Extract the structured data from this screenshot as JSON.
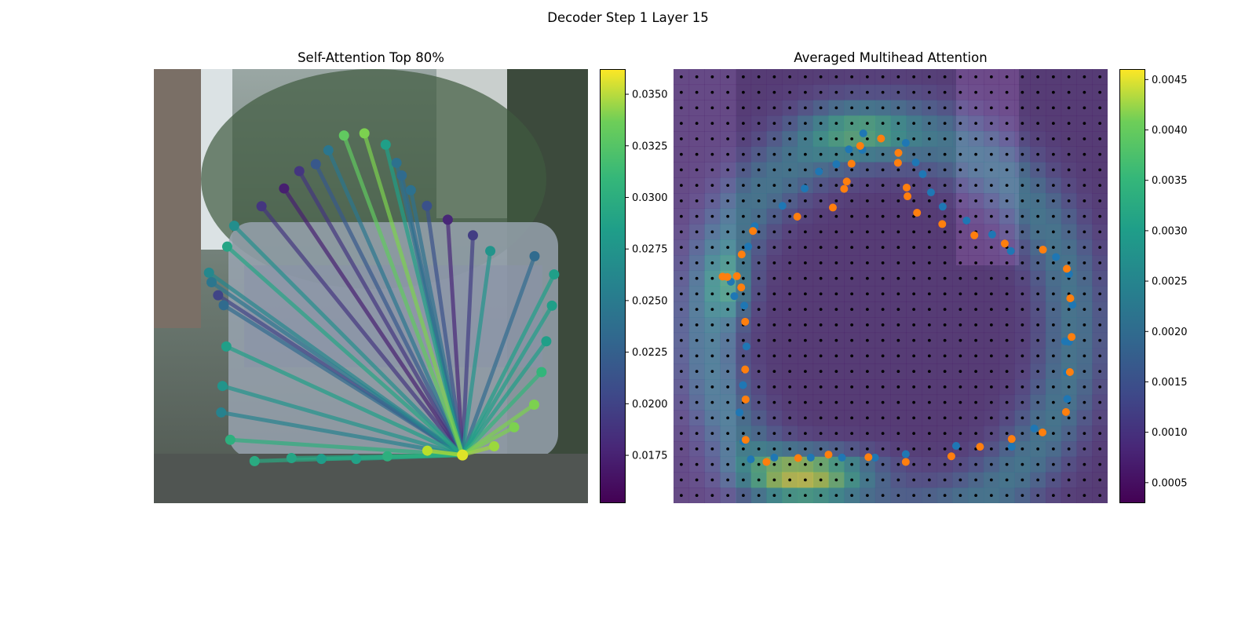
{
  "figure_title": "Decoder Step 1 Layer 15",
  "chart_data": [
    {
      "type": "scatter",
      "title": "Self-Attention Top 80%",
      "description_of_marks": "polygon keypoints colored by attention weight, lines from query point to attended keypoints",
      "colormap": "viridis",
      "colorbar": {
        "min": 0.0152,
        "max": 0.0362,
        "ticks": [
          0.0175,
          0.02,
          0.0225,
          0.025,
          0.0275,
          0.03,
          0.0325,
          0.035
        ],
        "tick_labels": [
          "0.0175",
          "0.0200",
          "0.0225",
          "0.0250",
          "0.0275",
          "0.0300",
          "0.0325",
          "0.0350"
        ]
      },
      "query_point": {
        "x": 0.711,
        "y": 0.889,
        "value": 0.0352
      },
      "points": [
        {
          "x": 0.232,
          "y": 0.903,
          "v": 0.028
        },
        {
          "x": 0.317,
          "y": 0.896,
          "v": 0.0275
        },
        {
          "x": 0.386,
          "y": 0.898,
          "v": 0.0268
        },
        {
          "x": 0.466,
          "y": 0.898,
          "v": 0.0272
        },
        {
          "x": 0.538,
          "y": 0.892,
          "v": 0.0285
        },
        {
          "x": 0.63,
          "y": 0.879,
          "v": 0.034
        },
        {
          "x": 0.784,
          "y": 0.869,
          "v": 0.033
        },
        {
          "x": 0.83,
          "y": 0.825,
          "v": 0.032
        },
        {
          "x": 0.876,
          "y": 0.773,
          "v": 0.032
        },
        {
          "x": 0.893,
          "y": 0.698,
          "v": 0.029
        },
        {
          "x": 0.904,
          "y": 0.627,
          "v": 0.027
        },
        {
          "x": 0.917,
          "y": 0.545,
          "v": 0.027
        },
        {
          "x": 0.922,
          "y": 0.473,
          "v": 0.027
        },
        {
          "x": 0.877,
          "y": 0.431,
          "v": 0.0225
        },
        {
          "x": 0.775,
          "y": 0.419,
          "v": 0.026
        },
        {
          "x": 0.735,
          "y": 0.383,
          "v": 0.019
        },
        {
          "x": 0.677,
          "y": 0.347,
          "v": 0.0175
        },
        {
          "x": 0.629,
          "y": 0.315,
          "v": 0.0205
        },
        {
          "x": 0.592,
          "y": 0.279,
          "v": 0.023
        },
        {
          "x": 0.571,
          "y": 0.245,
          "v": 0.0225
        },
        {
          "x": 0.559,
          "y": 0.216,
          "v": 0.023
        },
        {
          "x": 0.534,
          "y": 0.174,
          "v": 0.027
        },
        {
          "x": 0.485,
          "y": 0.148,
          "v": 0.032
        },
        {
          "x": 0.438,
          "y": 0.153,
          "v": 0.031
        },
        {
          "x": 0.402,
          "y": 0.187,
          "v": 0.0235
        },
        {
          "x": 0.373,
          "y": 0.219,
          "v": 0.021
        },
        {
          "x": 0.335,
          "y": 0.235,
          "v": 0.0185
        },
        {
          "x": 0.3,
          "y": 0.275,
          "v": 0.017
        },
        {
          "x": 0.248,
          "y": 0.316,
          "v": 0.0185
        },
        {
          "x": 0.185,
          "y": 0.361,
          "v": 0.0255
        },
        {
          "x": 0.169,
          "y": 0.409,
          "v": 0.0275
        },
        {
          "x": 0.127,
          "y": 0.469,
          "v": 0.025
        },
        {
          "x": 0.133,
          "y": 0.491,
          "v": 0.0235
        },
        {
          "x": 0.148,
          "y": 0.521,
          "v": 0.0195
        },
        {
          "x": 0.161,
          "y": 0.544,
          "v": 0.0225
        },
        {
          "x": 0.167,
          "y": 0.639,
          "v": 0.027
        },
        {
          "x": 0.158,
          "y": 0.73,
          "v": 0.026
        },
        {
          "x": 0.155,
          "y": 0.791,
          "v": 0.0245
        },
        {
          "x": 0.176,
          "y": 0.854,
          "v": 0.0285
        }
      ]
    },
    {
      "type": "heatmap",
      "title": "Averaged Multihead Attention",
      "colormap": "viridis",
      "grid_size": 28,
      "colorbar": {
        "min": 0.0003,
        "max": 0.0046,
        "ticks": [
          0.0005,
          0.001,
          0.0015,
          0.002,
          0.0025,
          0.003,
          0.0035,
          0.004,
          0.0045
        ],
        "tick_labels": [
          "0.0005",
          "0.0010",
          "0.0015",
          "0.0020",
          "0.0025",
          "0.0030",
          "0.0035",
          "0.0040",
          "0.0045"
        ]
      },
      "series": [
        {
          "name": "blue",
          "color": "#1f77b4",
          "points": [
            [
              0.437,
              0.148
            ],
            [
              0.435,
              0.186
            ],
            [
              0.535,
              0.17
            ],
            [
              0.558,
              0.215
            ],
            [
              0.574,
              0.242
            ],
            [
              0.593,
              0.284
            ],
            [
              0.62,
              0.317
            ],
            [
              0.675,
              0.349
            ],
            [
              0.734,
              0.381
            ],
            [
              0.777,
              0.419
            ],
            [
              0.881,
              0.433
            ],
            [
              0.911,
              0.472
            ],
            [
              0.919,
              0.543
            ],
            [
              0.902,
              0.627
            ],
            [
              0.911,
              0.628
            ],
            [
              0.906,
              0.699
            ],
            [
              0.907,
              0.76
            ],
            [
              0.831,
              0.828
            ],
            [
              0.779,
              0.87
            ],
            [
              0.651,
              0.868
            ],
            [
              0.535,
              0.887
            ],
            [
              0.464,
              0.895
            ],
            [
              0.388,
              0.895
            ],
            [
              0.316,
              0.895
            ],
            [
              0.232,
              0.895
            ],
            [
              0.178,
              0.899
            ],
            [
              0.161,
              0.858
            ],
            [
              0.152,
              0.791
            ],
            [
              0.16,
              0.728
            ],
            [
              0.168,
              0.639
            ],
            [
              0.163,
              0.545
            ],
            [
              0.14,
              0.523
            ],
            [
              0.132,
              0.49
            ],
            [
              0.172,
              0.409
            ],
            [
              0.187,
              0.362
            ],
            [
              0.251,
              0.315
            ],
            [
              0.302,
              0.275
            ],
            [
              0.335,
              0.236
            ],
            [
              0.375,
              0.219
            ],
            [
              0.404,
              0.185
            ]
          ]
        },
        {
          "name": "orange",
          "color": "#ff7f0e",
          "points": [
            [
              0.478,
              0.16
            ],
            [
              0.43,
              0.177
            ],
            [
              0.41,
              0.218
            ],
            [
              0.399,
              0.259
            ],
            [
              0.393,
              0.276
            ],
            [
              0.367,
              0.319
            ],
            [
              0.285,
              0.34
            ],
            [
              0.183,
              0.373
            ],
            [
              0.157,
              0.427
            ],
            [
              0.113,
              0.478
            ],
            [
              0.124,
              0.479
            ],
            [
              0.146,
              0.477
            ],
            [
              0.156,
              0.503
            ],
            [
              0.165,
              0.582
            ],
            [
              0.165,
              0.692
            ],
            [
              0.166,
              0.761
            ],
            [
              0.166,
              0.854
            ],
            [
              0.214,
              0.905
            ],
            [
              0.287,
              0.896
            ],
            [
              0.357,
              0.888
            ],
            [
              0.449,
              0.894
            ],
            [
              0.535,
              0.905
            ],
            [
              0.64,
              0.892
            ],
            [
              0.706,
              0.87
            ],
            [
              0.779,
              0.852
            ],
            [
              0.85,
              0.837
            ],
            [
              0.904,
              0.79
            ],
            [
              0.913,
              0.698
            ],
            [
              0.917,
              0.617
            ],
            [
              0.914,
              0.528
            ],
            [
              0.906,
              0.46
            ],
            [
              0.851,
              0.416
            ],
            [
              0.763,
              0.402
            ],
            [
              0.693,
              0.383
            ],
            [
              0.619,
              0.357
            ],
            [
              0.561,
              0.331
            ],
            [
              0.539,
              0.293
            ],
            [
              0.537,
              0.273
            ],
            [
              0.517,
              0.216
            ],
            [
              0.518,
              0.193
            ]
          ]
        }
      ]
    }
  ]
}
